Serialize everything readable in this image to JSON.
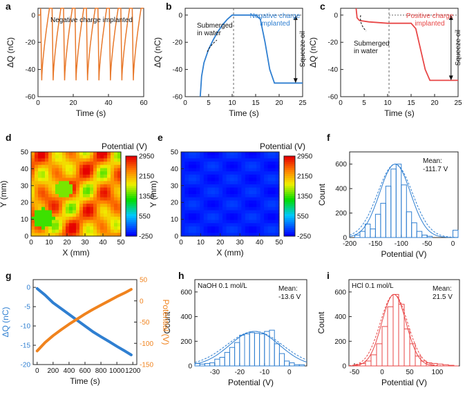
{
  "chart_data": [
    {
      "panel": "a",
      "type": "line",
      "xlabel": "Time (s)",
      "ylabel": "ΔQ (nC)",
      "xlim": [
        0,
        60
      ],
      "ylim": [
        -60,
        5
      ],
      "xticks": [
        "0",
        "20",
        "40",
        "60"
      ],
      "yticks": [
        "0",
        "-20",
        "-40",
        "-60"
      ],
      "annotation": "Negative charge implanted",
      "series": [
        {
          "color": "#e8782a",
          "cycles": 9,
          "period_s": 6.5,
          "min": -48,
          "max": 5
        }
      ]
    },
    {
      "panel": "b",
      "type": "line",
      "xlabel": "Time (s)",
      "ylabel": "ΔQ (nC)",
      "xlim": [
        0,
        25
      ],
      "ylim": [
        -60,
        5
      ],
      "xticks": [
        "0",
        "5",
        "10",
        "15",
        "20",
        "25"
      ],
      "yticks": [
        "0",
        "-20",
        "-40",
        "-60"
      ],
      "annotations": [
        "Submerged in water",
        "Negative charge implanted",
        "Squeeze oil"
      ],
      "divider_x": 10.3,
      "series": [
        {
          "color": "#2f7fd1",
          "points": [
            [
              3.2,
              -60
            ],
            [
              3.5,
              -45
            ],
            [
              4,
              -35
            ],
            [
              5,
              -25
            ],
            [
              6,
              -18
            ],
            [
              7,
              -12
            ],
            [
              8,
              -7
            ],
            [
              9,
              -3
            ],
            [
              10,
              0
            ],
            [
              15,
              0
            ],
            [
              16,
              -3
            ],
            [
              17,
              -20
            ],
            [
              18,
              -40
            ],
            [
              19,
              -50
            ],
            [
              25,
              -50
            ]
          ]
        }
      ]
    },
    {
      "panel": "c",
      "type": "line",
      "xlabel": "Time (s)",
      "ylabel": "ΔQ (nC)",
      "xlim": [
        0,
        25
      ],
      "ylim": [
        -60,
        5
      ],
      "xticks": [
        "0",
        "5",
        "10",
        "15",
        "20",
        "25"
      ],
      "yticks": [
        "0",
        "-20",
        "-40",
        "-60"
      ],
      "annotations": [
        "Submerged in water",
        "Positive charge implanted",
        "Squeeze oil"
      ],
      "divider_x": 10.3,
      "series": [
        {
          "color": "#e84646",
          "points": [
            [
              3.3,
              5
            ],
            [
              3.5,
              -2
            ],
            [
              4,
              -4
            ],
            [
              6,
              -5
            ],
            [
              8,
              -5.5
            ],
            [
              10,
              -6
            ],
            [
              15,
              -6
            ],
            [
              16,
              -10
            ],
            [
              17,
              -25
            ],
            [
              18,
              -40
            ],
            [
              19,
              -48
            ],
            [
              25,
              -48
            ]
          ]
        }
      ]
    },
    {
      "panel": "d",
      "type": "heatmap",
      "xlabel": "X (mm)",
      "ylabel": "Y (mm)",
      "xticks": [
        "0",
        "10",
        "20",
        "30",
        "40",
        "50"
      ],
      "yticks": [
        "0",
        "10",
        "20",
        "30",
        "40",
        "50"
      ],
      "colorbar_title": "Potential (V)",
      "colorbar_ticks": [
        "2950",
        "2150",
        "1350",
        "550",
        "-250"
      ],
      "range": [
        -250,
        2950
      ],
      "mean_level": "high"
    },
    {
      "panel": "e",
      "type": "heatmap",
      "xlabel": "X (mm)",
      "ylabel": "Y (mm)",
      "xticks": [
        "0",
        "10",
        "20",
        "30",
        "40",
        "50"
      ],
      "yticks": [
        "0",
        "10",
        "20",
        "30",
        "40",
        "50"
      ],
      "colorbar_title": "Potential (V)",
      "colorbar_ticks": [
        "2950",
        "2150",
        "1350",
        "550",
        "-250"
      ],
      "range": [
        -250,
        2950
      ],
      "mean_level": "low"
    },
    {
      "panel": "f",
      "type": "bar",
      "xlabel": "Potential (V)",
      "ylabel": "Count",
      "xlim": [
        -200,
        10
      ],
      "ylim": [
        0,
        700
      ],
      "xticks": [
        "-200",
        "-150",
        "-100",
        "-50",
        "0"
      ],
      "yticks": [
        "0",
        "200",
        "400",
        "600"
      ],
      "annotation_lines": [
        "Mean:",
        "-111.7 V"
      ],
      "bin_width": 10,
      "bins": [
        [
          -190,
          20
        ],
        [
          -180,
          50
        ],
        [
          -170,
          110
        ],
        [
          -160,
          70
        ],
        [
          -150,
          190
        ],
        [
          -140,
          280
        ],
        [
          -130,
          420
        ],
        [
          -120,
          560
        ],
        [
          -110,
          600
        ],
        [
          -100,
          430
        ],
        [
          -90,
          210
        ],
        [
          -80,
          120
        ],
        [
          -70,
          50
        ],
        [
          -60,
          20
        ],
        [
          -50,
          10
        ],
        [
          0,
          60
        ]
      ],
      "fit": {
        "center": -112,
        "sigma": 30,
        "peak": 600
      }
    },
    {
      "panel": "g",
      "type": "scatter",
      "xlabel": "Time (s)",
      "ylabel": "ΔQ (nC)",
      "ylabel2": "Potential (V)",
      "xlim": [
        -50,
        1250
      ],
      "ylim": [
        -20,
        2
      ],
      "ylim2": [
        -150,
        50
      ],
      "xticks": [
        "0",
        "200",
        "400",
        "600",
        "800",
        "1000",
        "1200"
      ],
      "yticks": [
        "0",
        "-5",
        "-10",
        "-15",
        "-20"
      ],
      "yticks2": [
        "50",
        "0",
        "-50",
        "-100",
        "-150"
      ],
      "series": [
        {
          "color": "#2f7fd1",
          "axis": "left",
          "points": [
            [
              0,
              -0.3
            ],
            [
              100,
              -2
            ],
            [
              200,
              -4
            ],
            [
              300,
              -5.5
            ],
            [
              400,
              -7
            ],
            [
              500,
              -8.5
            ],
            [
              600,
              -10
            ],
            [
              700,
              -11.5
            ],
            [
              800,
              -12.8
            ],
            [
              900,
              -14
            ],
            [
              1000,
              -15.3
            ],
            [
              1100,
              -16.5
            ],
            [
              1180,
              -17.5
            ]
          ]
        },
        {
          "color": "#f0831e",
          "axis": "right",
          "points": [
            [
              0,
              -118
            ],
            [
              100,
              -98
            ],
            [
              200,
              -82
            ],
            [
              300,
              -68
            ],
            [
              400,
              -55
            ],
            [
              500,
              -43
            ],
            [
              600,
              -31
            ],
            [
              700,
              -20
            ],
            [
              800,
              -10
            ],
            [
              900,
              0
            ],
            [
              1000,
              10
            ],
            [
              1100,
              19
            ],
            [
              1180,
              27
            ]
          ]
        }
      ]
    },
    {
      "panel": "h",
      "type": "bar",
      "xlabel": "Potential (V)",
      "ylabel": "Count",
      "xlim": [
        -38,
        7
      ],
      "ylim": [
        0,
        700
      ],
      "xticks": [
        "-30",
        "-20",
        "-10",
        "0"
      ],
      "yticks": [
        "0",
        "200",
        "400",
        "600"
      ],
      "annotation_lines": [
        "NaOH 0.1 mol/L",
        "Mean:",
        "-13.6 V"
      ],
      "bin_width": 2,
      "bins": [
        [
          -38,
          20
        ],
        [
          -36,
          15
        ],
        [
          -34,
          20
        ],
        [
          -32,
          25
        ],
        [
          -30,
          55
        ],
        [
          -28,
          70
        ],
        [
          -26,
          110
        ],
        [
          -24,
          150
        ],
        [
          -22,
          190
        ],
        [
          -20,
          250
        ],
        [
          -18,
          260
        ],
        [
          -16,
          270
        ],
        [
          -14,
          265
        ],
        [
          -12,
          260
        ],
        [
          -10,
          280
        ],
        [
          -8,
          290
        ],
        [
          -6,
          180
        ],
        [
          -4,
          100
        ],
        [
          -2,
          40
        ],
        [
          0,
          25
        ],
        [
          2,
          10
        ],
        [
          4,
          10
        ]
      ],
      "fit": {
        "center": -14,
        "sigma": 10,
        "peak": 280
      }
    },
    {
      "panel": "i",
      "type": "bar",
      "xlabel": "Potential (V)",
      "ylabel": "Count",
      "xlim": [
        -60,
        140
      ],
      "ylim": [
        0,
        700
      ],
      "xticks": [
        "-50",
        "0",
        "50",
        "100"
      ],
      "yticks": [
        "0",
        "200",
        "400",
        "600"
      ],
      "annotation_lines": [
        "HCl 0.1 mol/L",
        "Mean:",
        "21.5 V"
      ],
      "bin_width": 10,
      "bins": [
        [
          -50,
          10
        ],
        [
          -40,
          20
        ],
        [
          -30,
          40
        ],
        [
          -20,
          90
        ],
        [
          -10,
          180
        ],
        [
          0,
          320
        ],
        [
          10,
          480
        ],
        [
          20,
          580
        ],
        [
          30,
          500
        ],
        [
          40,
          300
        ],
        [
          50,
          180
        ],
        [
          60,
          80
        ],
        [
          70,
          40
        ],
        [
          80,
          25
        ],
        [
          90,
          20
        ],
        [
          100,
          15
        ],
        [
          110,
          10
        ],
        [
          120,
          5
        ]
      ],
      "fit": {
        "center": 21.5,
        "sigma": 22,
        "peak": 580
      }
    }
  ]
}
